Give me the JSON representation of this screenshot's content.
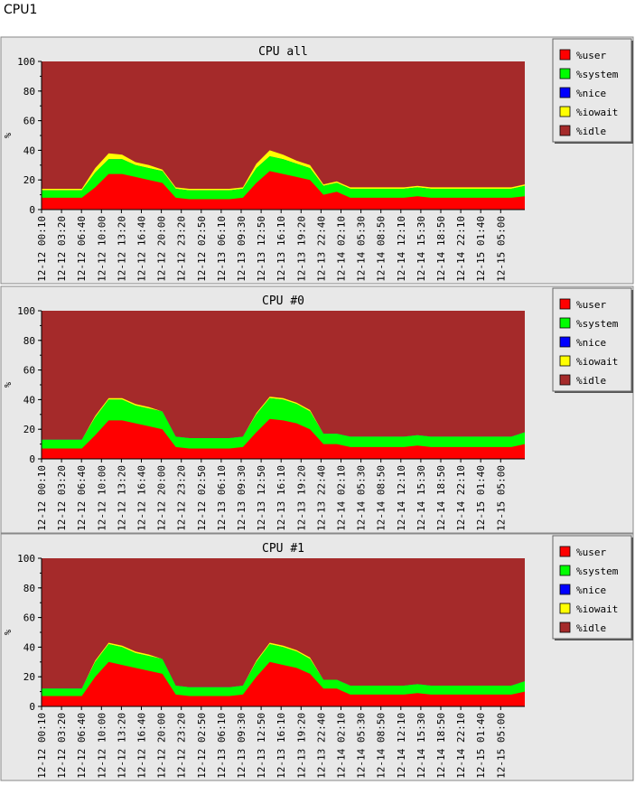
{
  "page": {
    "title": "CPU1"
  },
  "colors": {
    "background": "#e8e8e8",
    "idle": "#a52a2a",
    "user": "#ff0000",
    "system": "#00ff00",
    "nice": "#0000ff",
    "iowait": "#ffff00"
  },
  "legend": [
    {
      "key": "user",
      "label": "%user",
      "color": "#ff0000"
    },
    {
      "key": "system",
      "label": "%system",
      "color": "#00ff00"
    },
    {
      "key": "nice",
      "label": "%nice",
      "color": "#0000ff"
    },
    {
      "key": "iowait",
      "label": "%iowait",
      "color": "#ffff00"
    },
    {
      "key": "idle",
      "label": "%idle",
      "color": "#a52a2a"
    }
  ],
  "chart_data": [
    {
      "type": "area",
      "title": "CPU all",
      "ylabel": "%",
      "ylim": [
        0,
        100
      ],
      "yticks": [
        0,
        20,
        40,
        60,
        80,
        100
      ],
      "xtick_labels": [
        "12-12 00:10",
        "12-12 03:20",
        "12-12 06:40",
        "12-12 10:00",
        "12-12 13:20",
        "12-12 16:40",
        "12-12 20:00",
        "12-12 23:20",
        "12-12 02:50",
        "12-13 06:10",
        "12-13 09:30",
        "12-13 12:50",
        "12-13 16:10",
        "12-13 19:20",
        "12-13 22:40",
        "12-14 02:10",
        "12-14 05:30",
        "12-14 08:50",
        "12-14 12:10",
        "12-14 15:30",
        "12-14 18:50",
        "12-14 22:10",
        "12-15 01:40",
        "12-15 05:00"
      ],
      "legend_position": "right",
      "series": [
        {
          "name": "%user",
          "values": [
            8,
            8,
            8,
            8,
            15,
            24,
            24,
            22,
            20,
            18,
            8,
            7,
            7,
            7,
            7,
            8,
            18,
            26,
            24,
            22,
            20,
            10,
            12,
            8,
            8,
            8,
            8,
            8,
            9,
            8,
            8,
            8,
            8,
            8,
            8,
            8,
            9
          ]
        },
        {
          "name": "%system",
          "values": [
            5,
            5,
            5,
            5,
            10,
            10,
            10,
            8,
            8,
            8,
            6,
            6,
            6,
            6,
            6,
            6,
            10,
            10,
            10,
            9,
            8,
            6,
            6,
            6,
            6,
            6,
            6,
            6,
            6,
            6,
            6,
            6,
            6,
            6,
            6,
            6,
            7
          ]
        },
        {
          "name": "%nice",
          "values": [
            0,
            0,
            0,
            0,
            0,
            0,
            0,
            0,
            0,
            0,
            0,
            0,
            0,
            0,
            0,
            0,
            0,
            0,
            0,
            0,
            0,
            0,
            0,
            0,
            0,
            0,
            0,
            0,
            0,
            0,
            0,
            0,
            0,
            0,
            0,
            0,
            0
          ]
        },
        {
          "name": "%iowait",
          "values": [
            1,
            1,
            1,
            1,
            3,
            4,
            3,
            2,
            2,
            1,
            1,
            1,
            1,
            1,
            1,
            1,
            3,
            4,
            3,
            2,
            2,
            1,
            1,
            1,
            1,
            1,
            1,
            1,
            1,
            1,
            1,
            1,
            1,
            1,
            1,
            1,
            1
          ]
        }
      ]
    },
    {
      "type": "area",
      "title": "CPU #0",
      "ylabel": "%",
      "ylim": [
        0,
        100
      ],
      "yticks": [
        0,
        20,
        40,
        60,
        80,
        100
      ],
      "xtick_labels": [
        "12-12 00:10",
        "12-12 03:20",
        "12-12 06:40",
        "12-12 10:00",
        "12-12 13:20",
        "12-12 16:40",
        "12-12 20:00",
        "12-12 23:20",
        "12-12 02:50",
        "12-13 06:10",
        "12-13 09:30",
        "12-13 12:50",
        "12-13 16:10",
        "12-13 19:20",
        "12-13 22:40",
        "12-14 02:10",
        "12-14 05:30",
        "12-14 08:50",
        "12-14 12:10",
        "12-14 15:30",
        "12-14 18:50",
        "12-14 22:10",
        "12-15 01:40",
        "12-15 05:00"
      ],
      "legend_position": "right",
      "series": [
        {
          "name": "%user",
          "values": [
            7,
            7,
            7,
            7,
            16,
            26,
            26,
            24,
            22,
            20,
            8,
            7,
            7,
            7,
            7,
            8,
            18,
            27,
            26,
            24,
            20,
            10,
            10,
            8,
            8,
            8,
            8,
            8,
            9,
            8,
            8,
            8,
            8,
            8,
            8,
            8,
            10
          ]
        },
        {
          "name": "%system",
          "values": [
            6,
            6,
            6,
            6,
            12,
            14,
            14,
            12,
            12,
            12,
            7,
            7,
            7,
            7,
            7,
            7,
            12,
            14,
            14,
            13,
            12,
            7,
            7,
            7,
            7,
            7,
            7,
            7,
            7,
            7,
            7,
            7,
            7,
            7,
            7,
            7,
            8
          ]
        },
        {
          "name": "%nice",
          "values": [
            0,
            0,
            0,
            0,
            0,
            0,
            0,
            0,
            0,
            0,
            0,
            0,
            0,
            0,
            0,
            0,
            0,
            0,
            0,
            0,
            0,
            0,
            0,
            0,
            0,
            0,
            0,
            0,
            0,
            0,
            0,
            0,
            0,
            0,
            0,
            0,
            0
          ]
        },
        {
          "name": "%iowait",
          "values": [
            0,
            0,
            0,
            0,
            1,
            1,
            1,
            1,
            1,
            0,
            0,
            0,
            0,
            0,
            0,
            0,
            1,
            1,
            1,
            1,
            1,
            0,
            0,
            0,
            0,
            0,
            0,
            0,
            0,
            0,
            0,
            0,
            0,
            0,
            0,
            0,
            0
          ]
        }
      ]
    },
    {
      "type": "area",
      "title": "CPU #1",
      "ylabel": "%",
      "ylim": [
        0,
        100
      ],
      "yticks": [
        0,
        20,
        40,
        60,
        80,
        100
      ],
      "xtick_labels": [
        "12-12 00:10",
        "12-12 03:20",
        "12-12 06:40",
        "12-12 10:00",
        "12-12 13:20",
        "12-12 16:40",
        "12-12 20:00",
        "12-12 23:20",
        "12-12 02:50",
        "12-13 06:10",
        "12-13 09:30",
        "12-13 12:50",
        "12-13 16:10",
        "12-13 19:20",
        "12-13 22:40",
        "12-14 02:10",
        "12-14 05:30",
        "12-14 08:50",
        "12-14 12:10",
        "12-14 15:30",
        "12-14 18:50",
        "12-14 22:10",
        "12-15 01:40",
        "12-15 05:00"
      ],
      "legend_position": "right",
      "series": [
        {
          "name": "%user",
          "values": [
            7,
            7,
            7,
            7,
            20,
            30,
            28,
            26,
            24,
            22,
            8,
            7,
            7,
            7,
            7,
            8,
            20,
            30,
            28,
            26,
            22,
            12,
            12,
            8,
            8,
            8,
            8,
            8,
            9,
            8,
            8,
            8,
            8,
            8,
            8,
            8,
            10
          ]
        },
        {
          "name": "%system",
          "values": [
            5,
            5,
            5,
            5,
            10,
            12,
            12,
            10,
            10,
            10,
            6,
            6,
            6,
            6,
            6,
            6,
            10,
            12,
            12,
            11,
            10,
            6,
            6,
            6,
            6,
            6,
            6,
            6,
            6,
            6,
            6,
            6,
            6,
            6,
            6,
            6,
            7
          ]
        },
        {
          "name": "%nice",
          "values": [
            0,
            0,
            0,
            0,
            0,
            0,
            0,
            0,
            0,
            0,
            0,
            0,
            0,
            0,
            0,
            0,
            0,
            0,
            0,
            0,
            0,
            0,
            0,
            0,
            0,
            0,
            0,
            0,
            0,
            0,
            0,
            0,
            0,
            0,
            0,
            0,
            0
          ]
        },
        {
          "name": "%iowait",
          "values": [
            0,
            0,
            0,
            0,
            1,
            1,
            1,
            1,
            1,
            0,
            0,
            0,
            0,
            0,
            0,
            0,
            1,
            1,
            1,
            1,
            1,
            0,
            0,
            0,
            0,
            0,
            0,
            0,
            0,
            0,
            0,
            0,
            0,
            0,
            0,
            0,
            0
          ]
        }
      ]
    }
  ]
}
